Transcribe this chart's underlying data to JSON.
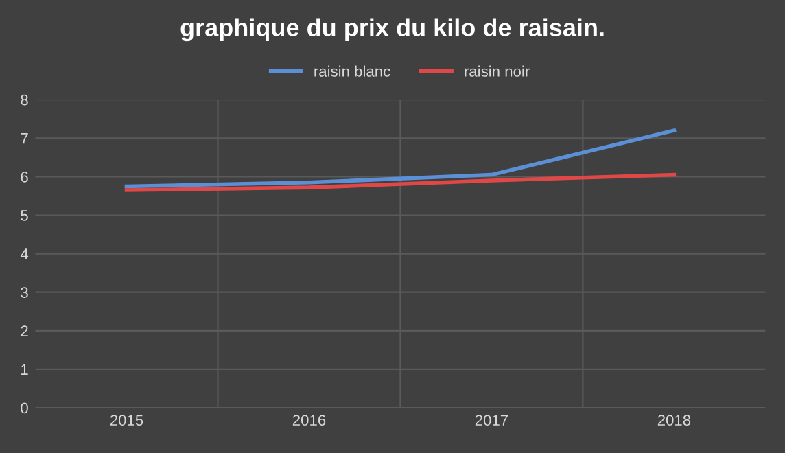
{
  "chart_data": {
    "type": "line",
    "title": "graphique du prix du kilo de raisain.",
    "categories": [
      "2015",
      "2016",
      "2017",
      "2018"
    ],
    "series": [
      {
        "name": "raisin blanc",
        "color": "#5b8fd6",
        "values": [
          5.75,
          5.85,
          6.05,
          7.2
        ]
      },
      {
        "name": "raisin noir",
        "color": "#e04848",
        "values": [
          5.65,
          5.72,
          5.9,
          6.05
        ]
      }
    ],
    "ylim": [
      0,
      8
    ],
    "yticks": [
      0,
      1,
      2,
      3,
      4,
      5,
      6,
      7,
      8
    ],
    "grid": true,
    "legend": "top",
    "marker": "none",
    "line_style": "solid"
  }
}
